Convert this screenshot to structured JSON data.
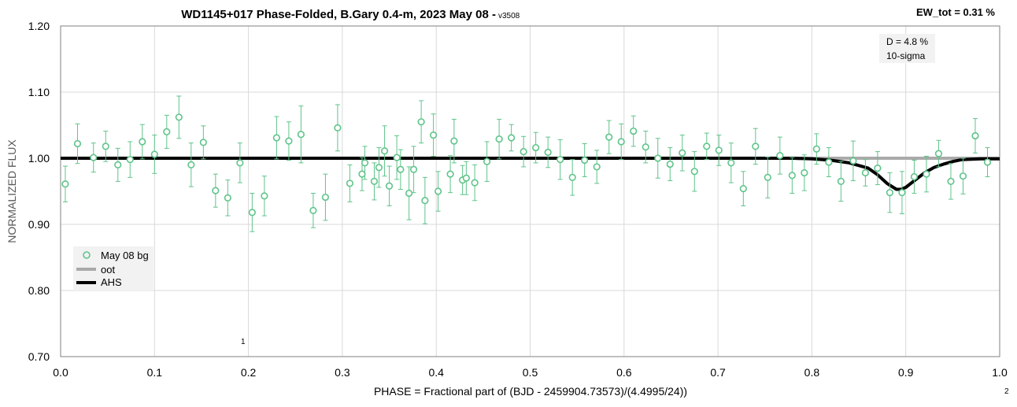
{
  "page": {
    "title": "WD1145+017 Phase-Folded, B.Gary 0.4-m, 2023 May 08 - ",
    "title_suffix": "v3508",
    "ew_label": "EW_tot = 0.31 %",
    "annotation": [
      "D = 4.8 %",
      "10-sigma"
    ],
    "marker_1": "1",
    "marker_2": "2"
  },
  "colors": {
    "points": "#5fc48a",
    "oot": "#aaaaaa",
    "ahs": "#000000",
    "grid": "#d9d9d9",
    "legend_bg": "#f2f2f2",
    "annotation_bg": "#f2f2f2"
  },
  "chart_data": {
    "type": "scatter",
    "title": "WD1145+017 Phase-Folded, B.Gary 0.4-m, 2023 May 08 - v3508",
    "xlabel": "PHASE = Fractional part of (BJD - 2459904.73573)/(4.4995/24))",
    "ylabel": "NORMALIZED FLUX",
    "xlim": [
      0.0,
      1.0
    ],
    "ylim": [
      0.7,
      1.2
    ],
    "x_ticks": [
      0.0,
      0.1,
      0.2,
      0.3,
      0.4,
      0.5,
      0.6,
      0.7,
      0.8,
      0.9,
      1.0
    ],
    "x_tick_labels": [
      "0.0",
      "0.1",
      "0.2",
      "0.3",
      "0.4",
      "0.5",
      "0.6",
      "0.7",
      "0.8",
      "0.9",
      "1.0"
    ],
    "y_ticks": [
      0.7,
      0.8,
      0.9,
      1.0,
      1.1,
      1.2
    ],
    "y_tick_labels": [
      "0.70",
      "0.80",
      "0.90",
      "1.00",
      "1.10",
      "1.20"
    ],
    "grid": true,
    "legend_position": "lower-left",
    "series": [
      {
        "name": "May 08 bg",
        "type": "scatter",
        "points": [
          [
            0.005,
            0.961,
            0.027
          ],
          [
            0.018,
            1.022,
            0.03
          ],
          [
            0.035,
            1.001,
            0.022
          ],
          [
            0.048,
            1.018,
            0.023
          ],
          [
            0.061,
            0.99,
            0.025
          ],
          [
            0.074,
            0.998,
            0.027
          ],
          [
            0.087,
            1.025,
            0.026
          ],
          [
            0.1,
            1.006,
            0.029
          ],
          [
            0.113,
            1.04,
            0.025
          ],
          [
            0.126,
            1.062,
            0.032
          ],
          [
            0.139,
            0.99,
            0.033
          ],
          [
            0.152,
            1.024,
            0.025
          ],
          [
            0.165,
            0.951,
            0.025
          ],
          [
            0.178,
            0.94,
            0.027
          ],
          [
            0.191,
            0.993,
            0.03
          ],
          [
            0.204,
            0.918,
            0.029
          ],
          [
            0.217,
            0.943,
            0.03
          ],
          [
            0.23,
            1.031,
            0.032
          ],
          [
            0.243,
            1.026,
            0.029
          ],
          [
            0.256,
            1.036,
            0.043
          ],
          [
            0.269,
            0.921,
            0.026
          ],
          [
            0.282,
            0.941,
            0.035
          ],
          [
            0.295,
            1.046,
            0.035
          ],
          [
            0.308,
            0.962,
            0.028
          ],
          [
            0.321,
            0.976,
            0.025
          ],
          [
            0.324,
            0.993,
            0.025
          ],
          [
            0.334,
            0.965,
            0.028
          ],
          [
            0.339,
            0.986,
            0.03
          ],
          [
            0.345,
            1.011,
            0.038
          ],
          [
            0.35,
            0.958,
            0.03
          ],
          [
            0.358,
            1.001,
            0.033
          ],
          [
            0.362,
            0.983,
            0.03
          ],
          [
            0.371,
            0.947,
            0.04
          ],
          [
            0.376,
            0.983,
            0.035
          ],
          [
            0.384,
            1.055,
            0.032
          ],
          [
            0.388,
            0.936,
            0.035
          ],
          [
            0.397,
            1.035,
            0.032
          ],
          [
            0.402,
            0.95,
            0.03
          ],
          [
            0.415,
            0.976,
            0.028
          ],
          [
            0.419,
            1.026,
            0.033
          ],
          [
            0.428,
            0.967,
            0.022
          ],
          [
            0.432,
            0.97,
            0.025
          ],
          [
            0.441,
            0.963,
            0.027
          ],
          [
            0.454,
            0.995,
            0.03
          ],
          [
            0.467,
            1.029,
            0.03
          ],
          [
            0.48,
            1.031,
            0.02
          ],
          [
            0.493,
            1.01,
            0.023
          ],
          [
            0.506,
            1.016,
            0.023
          ],
          [
            0.519,
            1.009,
            0.023
          ],
          [
            0.532,
            0.998,
            0.03
          ],
          [
            0.545,
            0.971,
            0.027
          ],
          [
            0.558,
            0.997,
            0.025
          ],
          [
            0.571,
            0.987,
            0.025
          ],
          [
            0.584,
            1.032,
            0.025
          ],
          [
            0.597,
            1.025,
            0.027
          ],
          [
            0.61,
            1.041,
            0.023
          ],
          [
            0.623,
            1.017,
            0.024
          ],
          [
            0.636,
            1.0,
            0.03
          ],
          [
            0.649,
            0.991,
            0.025
          ],
          [
            0.662,
            1.008,
            0.027
          ],
          [
            0.675,
            0.98,
            0.03
          ],
          [
            0.688,
            1.018,
            0.02
          ],
          [
            0.701,
            1.012,
            0.023
          ],
          [
            0.714,
            0.993,
            0.03
          ],
          [
            0.727,
            0.954,
            0.026
          ],
          [
            0.74,
            1.018,
            0.027
          ],
          [
            0.753,
            0.971,
            0.031
          ],
          [
            0.766,
            1.004,
            0.028
          ],
          [
            0.779,
            0.974,
            0.027
          ],
          [
            0.792,
            0.978,
            0.027
          ],
          [
            0.805,
            1.014,
            0.023
          ],
          [
            0.818,
            0.994,
            0.022
          ],
          [
            0.831,
            0.965,
            0.03
          ],
          [
            0.844,
            0.996,
            0.03
          ],
          [
            0.857,
            0.978,
            0.02
          ],
          [
            0.87,
            0.985,
            0.025
          ],
          [
            0.883,
            0.948,
            0.03
          ],
          [
            0.896,
            0.948,
            0.032
          ],
          [
            0.909,
            0.972,
            0.025
          ],
          [
            0.922,
            0.976,
            0.027
          ],
          [
            0.935,
            1.007,
            0.02
          ],
          [
            0.948,
            0.965,
            0.027
          ],
          [
            0.961,
            0.973,
            0.027
          ],
          [
            0.974,
            1.034,
            0.026
          ],
          [
            0.987,
            0.994,
            0.022
          ]
        ]
      },
      {
        "name": "oot",
        "type": "line",
        "points": [
          [
            0.0,
            1.0
          ],
          [
            1.0,
            1.0
          ]
        ]
      },
      {
        "name": "AHS",
        "type": "line",
        "points": [
          [
            0.0,
            1.0
          ],
          [
            0.78,
            1.0
          ],
          [
            0.8,
            0.999
          ],
          [
            0.82,
            0.997
          ],
          [
            0.84,
            0.993
          ],
          [
            0.86,
            0.985
          ],
          [
            0.87,
            0.975
          ],
          [
            0.88,
            0.962
          ],
          [
            0.89,
            0.953
          ],
          [
            0.895,
            0.953
          ],
          [
            0.9,
            0.956
          ],
          [
            0.91,
            0.967
          ],
          [
            0.92,
            0.978
          ],
          [
            0.93,
            0.986
          ],
          [
            0.94,
            0.991
          ],
          [
            0.95,
            0.995
          ],
          [
            0.96,
            0.998
          ],
          [
            0.98,
            0.999
          ],
          [
            1.0,
            0.999
          ]
        ]
      }
    ]
  }
}
